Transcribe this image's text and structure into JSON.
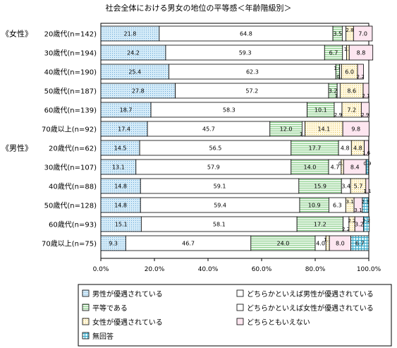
{
  "chart_data": {
    "type": "bar",
    "title": "社会全体における男女の地位の平等感＜年齢階級別＞",
    "orientation": "horizontal",
    "stacked": "percent",
    "xlim": [
      0,
      100
    ],
    "x_ticks": [
      "0.0%",
      "20.0%",
      "40.0%",
      "60.0%",
      "80.0%",
      "100.0%"
    ],
    "groups": [
      {
        "label": "《女性》",
        "start_index": 0,
        "count": 6
      },
      {
        "label": "《男性》",
        "start_index": 6,
        "count": 6
      }
    ],
    "categories": [
      "20歳代(n=142)",
      "30歳代(n=194)",
      "40歳代(n=190)",
      "50歳代(n=187)",
      "60歳代(n=139)",
      "70歳以上(n=92)",
      "20歳代(n=62)",
      "30歳代(n=107)",
      "40歳代(n=88)",
      "50歳代(n=128)",
      "60歳代(n=93)",
      "70歳以上(n=75)"
    ],
    "series": [
      {
        "name": "男性が優遇されている",
        "color": "#b4d8f0",
        "pattern": "dots-blue",
        "values": [
          21.8,
          24.2,
          25.4,
          27.8,
          18.7,
          17.4,
          14.5,
          13.1,
          14.8,
          14.8,
          15.1,
          9.3
        ]
      },
      {
        "name": "どちらかといえば男性が優遇されている",
        "color": "#ffffff",
        "pattern": "plain",
        "values": [
          64.8,
          59.3,
          62.3,
          57.2,
          58.3,
          45.7,
          56.5,
          57.9,
          59.1,
          59.4,
          58.1,
          46.7
        ]
      },
      {
        "name": "平等である",
        "color": "#d8f0d8",
        "pattern": "hlines-green",
        "values": [
          3.5,
          6.7,
          1.4,
          3.2,
          10.1,
          12.0,
          17.7,
          14.0,
          15.9,
          10.9,
          17.2,
          24.0
        ]
      },
      {
        "name": "どちらかといえば女性が優遇されている",
        "color": "#ffffff",
        "pattern": "plain",
        "values": [
          1.4,
          1.5,
          0.7,
          1.1,
          2.9,
          1.1,
          4.8,
          4.7,
          3.4,
          6.3,
          2.2,
          4.0
        ]
      },
      {
        "name": "女性が優遇されている",
        "color": "#fff4d8",
        "pattern": "dots-yellow",
        "values": [
          2.8,
          1.0,
          6.0,
          8.6,
          7.2,
          14.1,
          4.8,
          0.9,
          5.7,
          3.1,
          2.2,
          1.3
        ]
      },
      {
        "name": "どちらともいえない",
        "color": "#fce4f0",
        "pattern": "plain-pink",
        "values": [
          7.0,
          8.8,
          2.2,
          2.1,
          2.9,
          9.8,
          1.6,
          8.4,
          1.1,
          3.1,
          3.2,
          8.0
        ]
      },
      {
        "name": "無回答",
        "color": "#c8f0f8",
        "pattern": "grid-teal",
        "values": [
          0,
          0,
          0,
          0,
          0,
          0,
          0,
          0.9,
          0,
          2.3,
          2.2,
          6.7
        ]
      }
    ],
    "data_labels": [
      [
        "21.8",
        "64.8",
        "3.5",
        "",
        "2.8",
        "7.0",
        ""
      ],
      [
        "24.2",
        "59.3",
        "6.7",
        "",
        "1.0",
        "8.8",
        ""
      ],
      [
        "25.4",
        "62.3",
        "1.4",
        "0.7",
        "6.0",
        "2.2",
        ""
      ],
      [
        "27.8",
        "57.2",
        "3.2",
        "1.1",
        "8.6",
        "2.1",
        ""
      ],
      [
        "18.7",
        "58.3",
        "10.1",
        "2.9",
        "7.2",
        "2.9",
        ""
      ],
      [
        "17.4",
        "45.7",
        "12.0",
        "1.1",
        "14.1",
        "9.8",
        ""
      ],
      [
        "14.5",
        "56.5",
        "17.7",
        "4.8",
        "4.8",
        "1.6",
        ""
      ],
      [
        "13.1",
        "57.9",
        "14.0",
        "4.7",
        "0.9",
        "8.4",
        "0.9"
      ],
      [
        "14.8",
        "59.1",
        "15.9",
        "3.4",
        "5.7",
        "1.1",
        ""
      ],
      [
        "14.8",
        "59.4",
        "10.9",
        "6.3",
        "3.1",
        "3.1",
        "2.3"
      ],
      [
        "15.1",
        "58.1",
        "17.2",
        "2.2",
        "2.2",
        "3.2",
        "2.2"
      ],
      [
        "9.3",
        "46.7",
        "24.0",
        "4.0",
        "1.3",
        "8.0",
        "6.7"
      ]
    ],
    "legend": {
      "placement": "bottom",
      "columns": [
        [
          "男性が優遇されている",
          "平等である",
          "女性が優遇されている",
          "無回答"
        ],
        [
          "どちらかといえば男性が優遇されている",
          "どちらかといえば女性が優遇されている",
          "どちらともいえない"
        ]
      ]
    },
    "grid": false
  }
}
